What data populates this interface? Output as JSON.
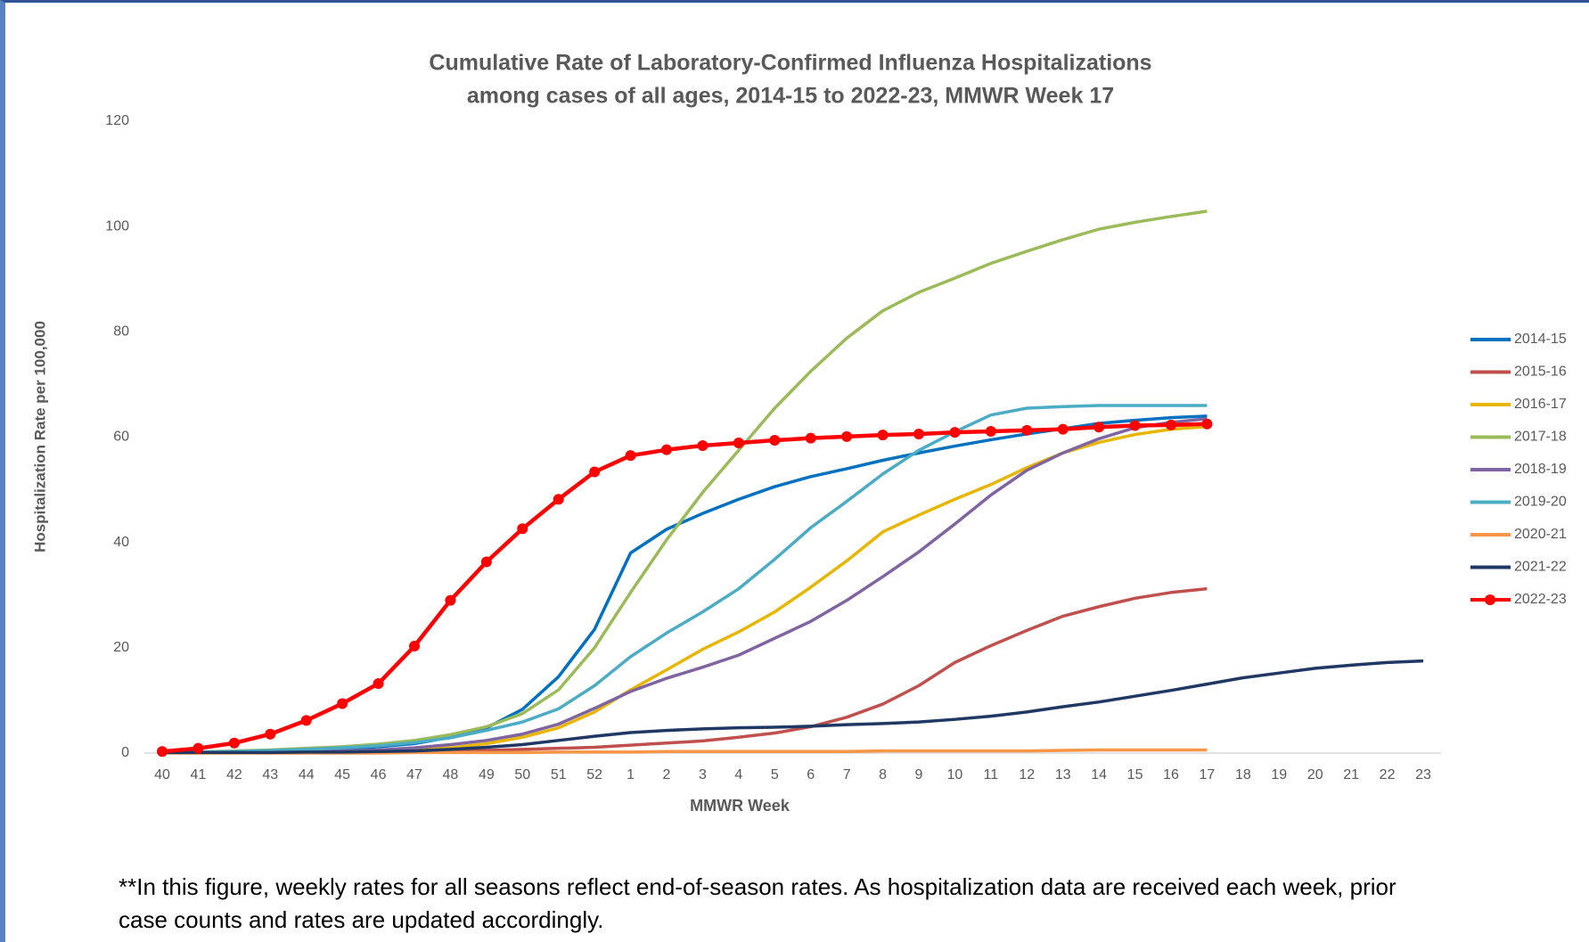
{
  "chart_data": {
    "type": "line",
    "title": [
      "Cumulative Rate of Laboratory-Confirmed Influenza Hospitalizations",
      "among cases of all ages, 2014-15 to 2022-23, MMWR  Week 17"
    ],
    "x_label": "MMWR Week",
    "y_label": "Hospitalization  Rate per 100,000",
    "categories": [
      "40",
      "41",
      "42",
      "43",
      "44",
      "45",
      "46",
      "47",
      "48",
      "49",
      "50",
      "51",
      "52",
      "1",
      "2",
      "3",
      "4",
      "5",
      "6",
      "7",
      "8",
      "9",
      "10",
      "11",
      "12",
      "13",
      "14",
      "15",
      "16",
      "17",
      "18",
      "19",
      "20",
      "21",
      "22",
      "23"
    ],
    "ylim": [
      0,
      120
    ],
    "yticks": [
      0,
      20,
      40,
      60,
      80,
      100,
      120
    ],
    "grid": false,
    "legend": "right",
    "series": [
      {
        "name": "2014-15",
        "color": "#0070c0",
        "values": [
          0.1,
          0.2,
          0.3,
          0.4,
          0.6,
          0.8,
          1.2,
          1.8,
          3,
          4.8,
          8.3,
          14.5,
          23.5,
          38,
          42.5,
          45.5,
          48.2,
          50.6,
          52.5,
          54,
          55.6,
          57,
          58.3,
          59.5,
          60.6,
          61.6,
          62.6,
          63.2,
          63.7,
          64,
          null,
          null,
          null,
          null,
          null,
          null
        ]
      },
      {
        "name": "2015-16",
        "color": "#c0504d",
        "values": [
          0.1,
          0.1,
          0.1,
          0.2,
          0.2,
          0.2,
          0.3,
          0.3,
          0.4,
          0.5,
          0.7,
          0.9,
          1.1,
          1.5,
          1.9,
          2.3,
          3,
          3.8,
          5,
          6.8,
          9.3,
          12.8,
          17.2,
          20.4,
          23.3,
          26,
          27.8,
          29.4,
          30.5,
          31.2,
          null,
          null,
          null,
          null,
          null,
          null
        ]
      },
      {
        "name": "2016-17",
        "color": "#e8b600",
        "values": [
          0.1,
          0.1,
          0.1,
          0.2,
          0.2,
          0.3,
          0.4,
          0.6,
          1,
          1.8,
          3,
          4.8,
          7.8,
          12,
          15.8,
          19.7,
          23,
          26.8,
          31.5,
          36.5,
          42,
          45.2,
          48.2,
          51,
          54.2,
          57,
          59,
          60.5,
          61.5,
          62,
          null,
          null,
          null,
          null,
          null,
          null
        ]
      },
      {
        "name": "2017-18",
        "color": "#9bbb59",
        "values": [
          0.1,
          0.2,
          0.4,
          0.6,
          0.9,
          1.2,
          1.7,
          2.4,
          3.5,
          5,
          7.5,
          12,
          20,
          30.5,
          40.5,
          49.5,
          57.5,
          65.5,
          72.5,
          78.8,
          84,
          87.5,
          90.2,
          93,
          95.3,
          97.5,
          99.5,
          100.8,
          101.9,
          102.9,
          null,
          null,
          null,
          null,
          null,
          null
        ]
      },
      {
        "name": "2018-19",
        "color": "#8064a2",
        "values": [
          0.1,
          0.1,
          0.2,
          0.2,
          0.3,
          0.4,
          0.6,
          1,
          1.6,
          2.4,
          3.6,
          5.5,
          8.5,
          11.7,
          14.2,
          16.3,
          18.6,
          21.8,
          25,
          29,
          33.5,
          38.2,
          43.5,
          49,
          53.7,
          57,
          59.7,
          61.8,
          62.8,
          63.5,
          null,
          null,
          null,
          null,
          null,
          null
        ]
      },
      {
        "name": "2019-20",
        "color": "#4bacc6",
        "values": [
          0.1,
          0.2,
          0.3,
          0.5,
          0.7,
          1,
          1.4,
          2,
          2.9,
          4.3,
          5.9,
          8.4,
          12.8,
          18.3,
          22.8,
          26.8,
          31.2,
          36.8,
          42.8,
          47.8,
          53,
          57.5,
          61,
          64.2,
          65.5,
          65.8,
          66,
          66,
          66,
          66,
          null,
          null,
          null,
          null,
          null,
          null
        ]
      },
      {
        "name": "2020-21",
        "color": "#f79646",
        "values": [
          0,
          0,
          0,
          0,
          0,
          0,
          0,
          0.1,
          0.1,
          0.1,
          0.1,
          0.2,
          0.2,
          0.2,
          0.3,
          0.3,
          0.3,
          0.3,
          0.3,
          0.3,
          0.4,
          0.4,
          0.4,
          0.4,
          0.4,
          0.5,
          0.6,
          0.6,
          0.6,
          0.6,
          null,
          null,
          null,
          null,
          null,
          null
        ]
      },
      {
        "name": "2021-22",
        "color": "#1f3864",
        "values": [
          0.1,
          0.1,
          0.1,
          0.1,
          0.2,
          0.2,
          0.3,
          0.4,
          0.7,
          1.1,
          1.6,
          2.4,
          3.2,
          3.9,
          4.3,
          4.6,
          4.8,
          4.9,
          5.1,
          5.4,
          5.6,
          5.9,
          6.4,
          7,
          7.8,
          8.8,
          9.7,
          10.8,
          11.9,
          13.1,
          14.3,
          15.2,
          16.1,
          16.7,
          17.2,
          17.5
        ]
      },
      {
        "name": "2022-23",
        "color": "#ff0000",
        "marker": true,
        "values": [
          0.3,
          0.9,
          1.9,
          3.6,
          6.2,
          9.4,
          13.2,
          20.3,
          29,
          36.3,
          42.6,
          48.2,
          53.4,
          56.5,
          57.6,
          58.4,
          58.9,
          59.4,
          59.8,
          60.1,
          60.4,
          60.6,
          60.9,
          61.1,
          61.3,
          61.5,
          61.9,
          62.2,
          62.3,
          62.5,
          null,
          null,
          null,
          null,
          null,
          null
        ]
      }
    ],
    "note": [
      "**In this figure, weekly rates for all seasons reflect end-of-season rates. As hospitalization data are received each week, prior",
      "case counts and rates are updated accordingly."
    ]
  }
}
